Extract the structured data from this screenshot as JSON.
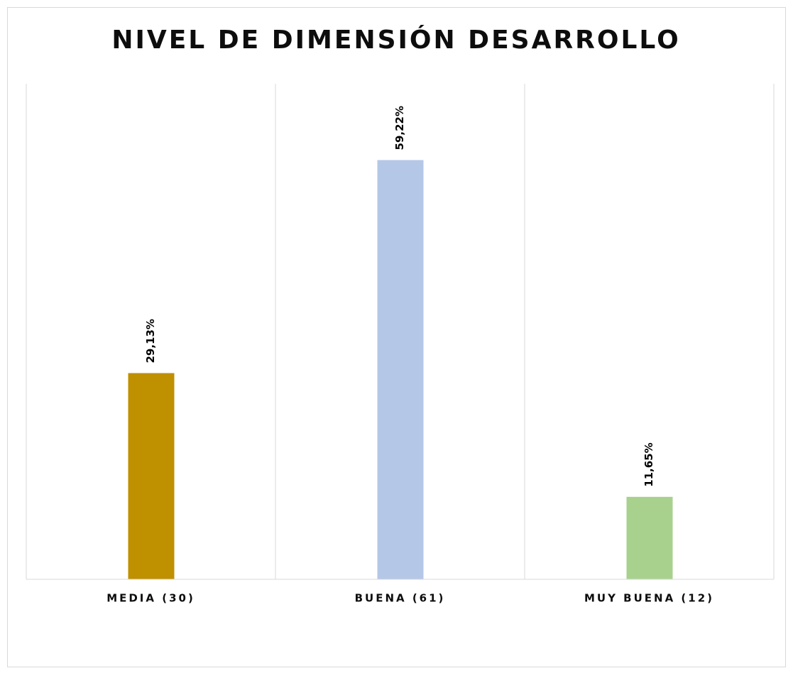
{
  "chart_data": {
    "type": "bar",
    "title": "NIVEL DE DIMENSIÓN DESARROLLO",
    "categories": [
      "MEDIA (30)",
      "BUENA (61)",
      "MUY BUENA (12)"
    ],
    "values": [
      29.13,
      59.22,
      11.65
    ],
    "value_labels": [
      "29,13%",
      "59,22%",
      "11,65%"
    ],
    "colors": [
      "#bf9000",
      "#b4c7e7",
      "#a9d18e"
    ],
    "ylim": [
      0,
      70
    ]
  }
}
